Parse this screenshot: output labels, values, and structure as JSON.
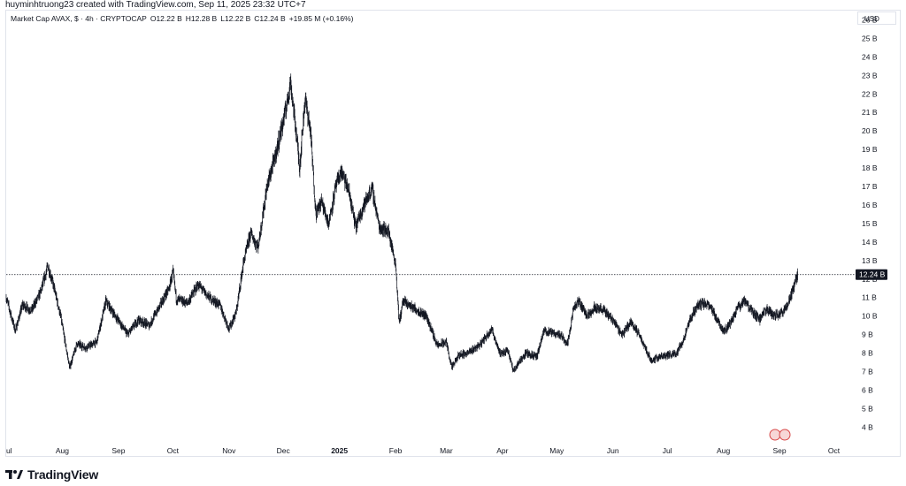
{
  "attribution": "huyminhtruong23 created with TradingView.com, Sep 11, 2025 23:32 UTC+7",
  "header": {
    "symbol": "Market Cap AVAX, $ · 4h · CRYPTOCAP",
    "open": "O12.22 B",
    "high": "H12.28 B",
    "low": "L12.22 B",
    "close": "C12.24 B",
    "change": "+19.85 M (+0.16%)"
  },
  "currency": "USD",
  "brand": {
    "name": "TradingView",
    "logo_icon": "tradingview-logo-icon"
  },
  "colors": {
    "price_line": "#131722",
    "candle": "#131722",
    "badge_bg": "#131722",
    "badge_text": "#ffffff"
  },
  "chart_data": {
    "type": "candlestick",
    "title": "Market Cap AVAX, $ · 4h · CRYPTOCAP",
    "unit": "B USD",
    "ylim": [
      3.3,
      26.5
    ],
    "y_ticks": [
      "4 B",
      "5 B",
      "6 B",
      "7 B",
      "8 B",
      "9 B",
      "10 B",
      "11 B",
      "12 B",
      "13 B",
      "14 B",
      "15 B",
      "16 B",
      "17 B",
      "18 B",
      "19 B",
      "20 B",
      "21 B",
      "22 B",
      "23 B",
      "24 B",
      "25 B",
      "26 B"
    ],
    "x_labels": [
      "ul",
      "Aug",
      "Sep",
      "Oct",
      "Nov",
      "Dec",
      "2025",
      "Feb",
      "Mar",
      "Apr",
      "May",
      "Jun",
      "Jul",
      "Aug",
      "Sep",
      "Oct"
    ],
    "x_range": [
      "2024-07-01",
      "2025-10-12"
    ],
    "last_price": 12.24,
    "last_price_label": "12.24 B",
    "path": [
      [
        "2024-07-01",
        11.0
      ],
      [
        "2024-07-06",
        9.2
      ],
      [
        "2024-07-10",
        10.6
      ],
      [
        "2024-07-15",
        10.3
      ],
      [
        "2024-07-20",
        11.3
      ],
      [
        "2024-07-24",
        12.7
      ],
      [
        "2024-07-27",
        11.7
      ],
      [
        "2024-07-31",
        10.0
      ],
      [
        "2024-08-05",
        7.2
      ],
      [
        "2024-08-09",
        8.5
      ],
      [
        "2024-08-14",
        8.3
      ],
      [
        "2024-08-20",
        8.6
      ],
      [
        "2024-08-25",
        10.8
      ],
      [
        "2024-08-31",
        9.9
      ],
      [
        "2024-09-06",
        9.0
      ],
      [
        "2024-09-12",
        9.8
      ],
      [
        "2024-09-18",
        9.5
      ],
      [
        "2024-09-23",
        10.4
      ],
      [
        "2024-09-29",
        11.5
      ],
      [
        "2024-10-01",
        12.4
      ],
      [
        "2024-10-03",
        10.9
      ],
      [
        "2024-10-09",
        10.7
      ],
      [
        "2024-10-15",
        11.7
      ],
      [
        "2024-10-21",
        11.0
      ],
      [
        "2024-10-27",
        10.6
      ],
      [
        "2024-11-01",
        9.3
      ],
      [
        "2024-11-05",
        10.2
      ],
      [
        "2024-11-09",
        12.9
      ],
      [
        "2024-11-13",
        14.5
      ],
      [
        "2024-11-17",
        13.7
      ],
      [
        "2024-11-22",
        17.0
      ],
      [
        "2024-11-27",
        18.8
      ],
      [
        "2024-12-02",
        21.0
      ],
      [
        "2024-12-05",
        22.6
      ],
      [
        "2024-12-08",
        20.0
      ],
      [
        "2024-12-10",
        18.0
      ],
      [
        "2024-12-13",
        21.8
      ],
      [
        "2024-12-16",
        20.0
      ],
      [
        "2024-12-19",
        15.5
      ],
      [
        "2024-12-22",
        16.2
      ],
      [
        "2024-12-26",
        15.0
      ],
      [
        "2024-12-30",
        17.0
      ],
      [
        "2025-01-02",
        17.8
      ],
      [
        "2025-01-06",
        16.8
      ],
      [
        "2025-01-10",
        14.8
      ],
      [
        "2025-01-14",
        15.9
      ],
      [
        "2025-01-19",
        16.9
      ],
      [
        "2025-01-23",
        14.8
      ],
      [
        "2025-01-28",
        14.6
      ],
      [
        "2025-02-01",
        12.8
      ],
      [
        "2025-02-03",
        9.6
      ],
      [
        "2025-02-05",
        10.8
      ],
      [
        "2025-02-10",
        10.5
      ],
      [
        "2025-02-18",
        10.0
      ],
      [
        "2025-02-24",
        8.4
      ],
      [
        "2025-03-01",
        8.6
      ],
      [
        "2025-03-04",
        7.2
      ],
      [
        "2025-03-08",
        7.9
      ],
      [
        "2025-03-13",
        8.0
      ],
      [
        "2025-03-20",
        8.5
      ],
      [
        "2025-03-26",
        9.3
      ],
      [
        "2025-03-31",
        7.9
      ],
      [
        "2025-04-04",
        8.2
      ],
      [
        "2025-04-07",
        7.0
      ],
      [
        "2025-04-10",
        7.5
      ],
      [
        "2025-04-14",
        8.0
      ],
      [
        "2025-04-20",
        7.8
      ],
      [
        "2025-04-24",
        9.2
      ],
      [
        "2025-04-28",
        9.1
      ],
      [
        "2025-05-03",
        9.0
      ],
      [
        "2025-05-07",
        8.5
      ],
      [
        "2025-05-10",
        10.3
      ],
      [
        "2025-05-13",
        10.8
      ],
      [
        "2025-05-18",
        10.0
      ],
      [
        "2025-05-22",
        10.5
      ],
      [
        "2025-05-27",
        10.3
      ],
      [
        "2025-06-01",
        9.8
      ],
      [
        "2025-06-06",
        9.0
      ],
      [
        "2025-06-11",
        9.7
      ],
      [
        "2025-06-16",
        8.9
      ],
      [
        "2025-06-22",
        7.6
      ],
      [
        "2025-06-27",
        7.8
      ],
      [
        "2025-07-02",
        7.9
      ],
      [
        "2025-07-06",
        8.0
      ],
      [
        "2025-07-10",
        8.7
      ],
      [
        "2025-07-14",
        9.9
      ],
      [
        "2025-07-18",
        10.6
      ],
      [
        "2025-07-22",
        10.7
      ],
      [
        "2025-07-26",
        10.3
      ],
      [
        "2025-08-01",
        9.2
      ],
      [
        "2025-08-05",
        9.6
      ],
      [
        "2025-08-09",
        10.5
      ],
      [
        "2025-08-13",
        10.8
      ],
      [
        "2025-08-17",
        10.2
      ],
      [
        "2025-08-21",
        9.8
      ],
      [
        "2025-08-25",
        10.4
      ],
      [
        "2025-08-29",
        10.0
      ],
      [
        "2025-09-02",
        10.2
      ],
      [
        "2025-09-05",
        10.5
      ],
      [
        "2025-09-08",
        11.3
      ],
      [
        "2025-09-11",
        12.24
      ]
    ]
  }
}
